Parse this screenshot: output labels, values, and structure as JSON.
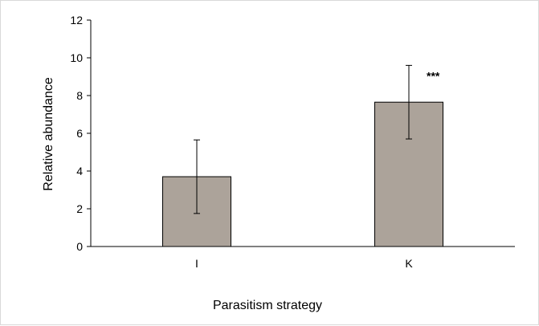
{
  "chart_data": {
    "type": "bar",
    "title": "",
    "xlabel": "Parasitism strategy",
    "ylabel": "Relative abundance",
    "categories": [
      "I",
      "K"
    ],
    "series": [
      {
        "values": [
          3.7,
          7.65
        ],
        "error": [
          1.95,
          1.95
        ],
        "color": "#aca39a"
      }
    ],
    "ylim": [
      0,
      12
    ],
    "yticks": [
      "0",
      "2",
      "4",
      "6",
      "8",
      "10",
      "12"
    ],
    "annotations": [
      {
        "category": "K",
        "text": "***"
      }
    ],
    "grid": false,
    "legend": "none"
  }
}
